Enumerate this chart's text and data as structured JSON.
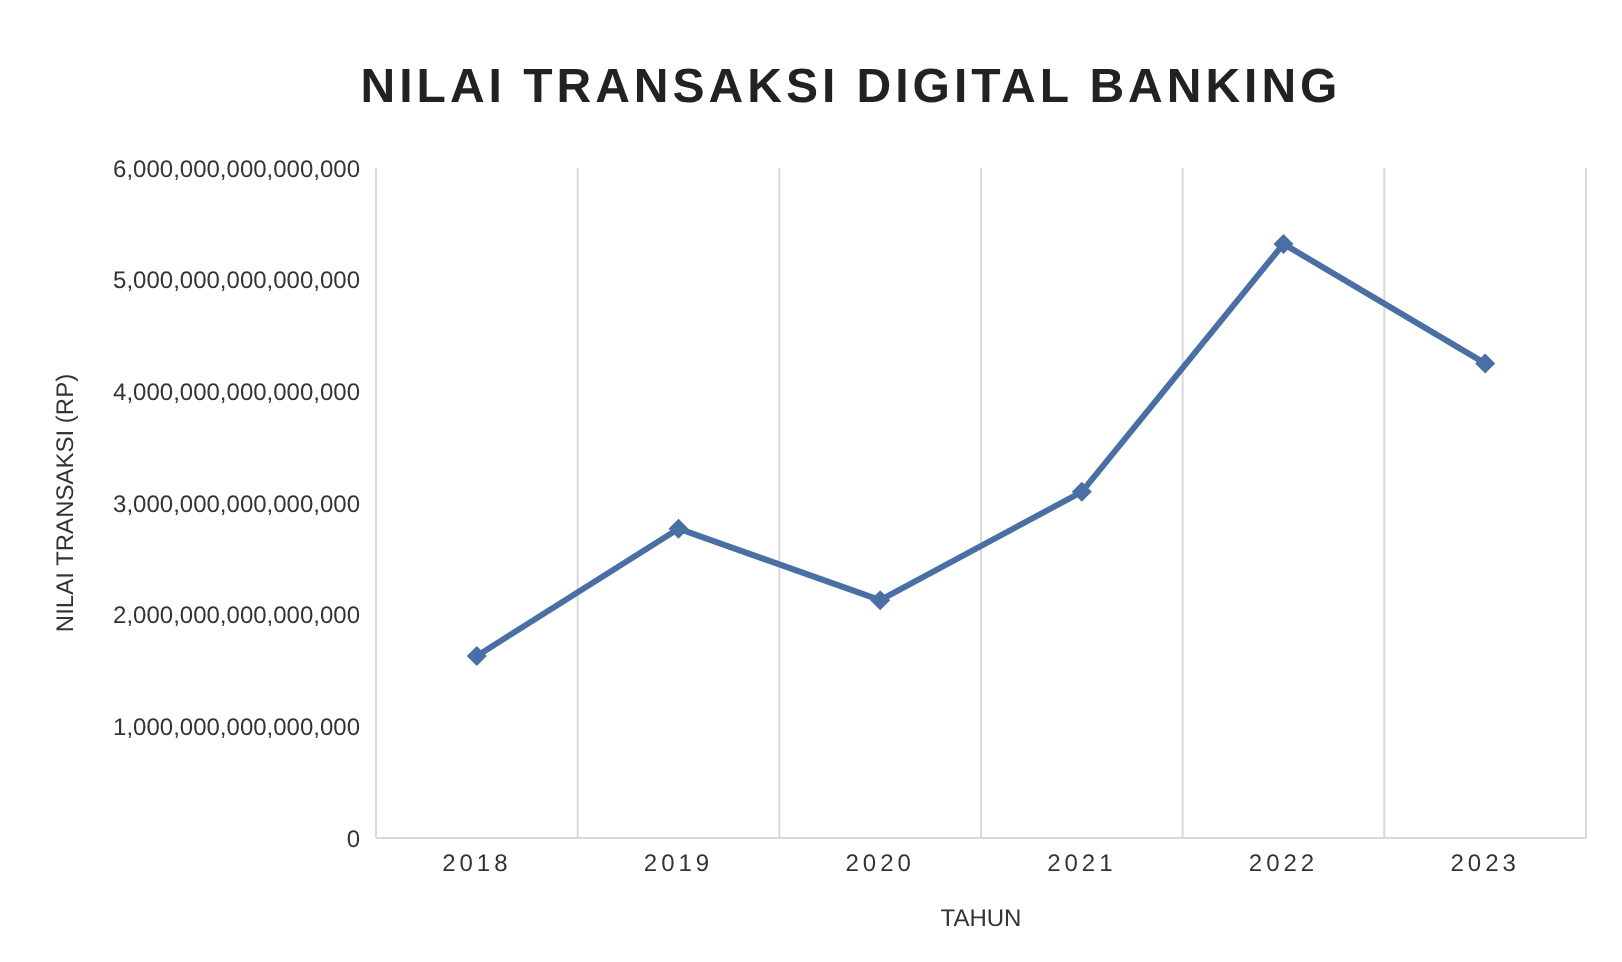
{
  "chart_data": {
    "type": "line",
    "title": "NILAI TRANSAKSI DIGITAL BANKING",
    "xlabel": "TAHUN",
    "ylabel": "NILAI TRANSAKSI (RP)",
    "categories": [
      "2018",
      "2019",
      "2020",
      "2021",
      "2022",
      "2023"
    ],
    "series": [
      {
        "color": "#4a6fa5",
        "values": [
          1630000000000000,
          2770000000000000,
          2130000000000000,
          3100000000000000,
          5320000000000000,
          4250000000000000
        ]
      }
    ],
    "ylim": [
      0,
      6000000000000000
    ],
    "yticks": [
      0,
      {
        "value": 1000000000000000,
        "label": "1,000,000,000,000,000"
      },
      {
        "value": 2000000000000000,
        "label": "2,000,000,000,000,000"
      },
      {
        "value": 3000000000000000,
        "label": "3,000,000,000,000,000"
      },
      {
        "value": 4000000000000000,
        "label": "4,000,000,000,000,000"
      },
      {
        "value": 5000000000000000,
        "label": "5,000,000,000,000,000"
      },
      {
        "value": 6000000000000000,
        "label": "6,000,000,000,000,000"
      }
    ],
    "grid": "x",
    "marker": "diamond",
    "line_style": "solid",
    "legend": false
  }
}
